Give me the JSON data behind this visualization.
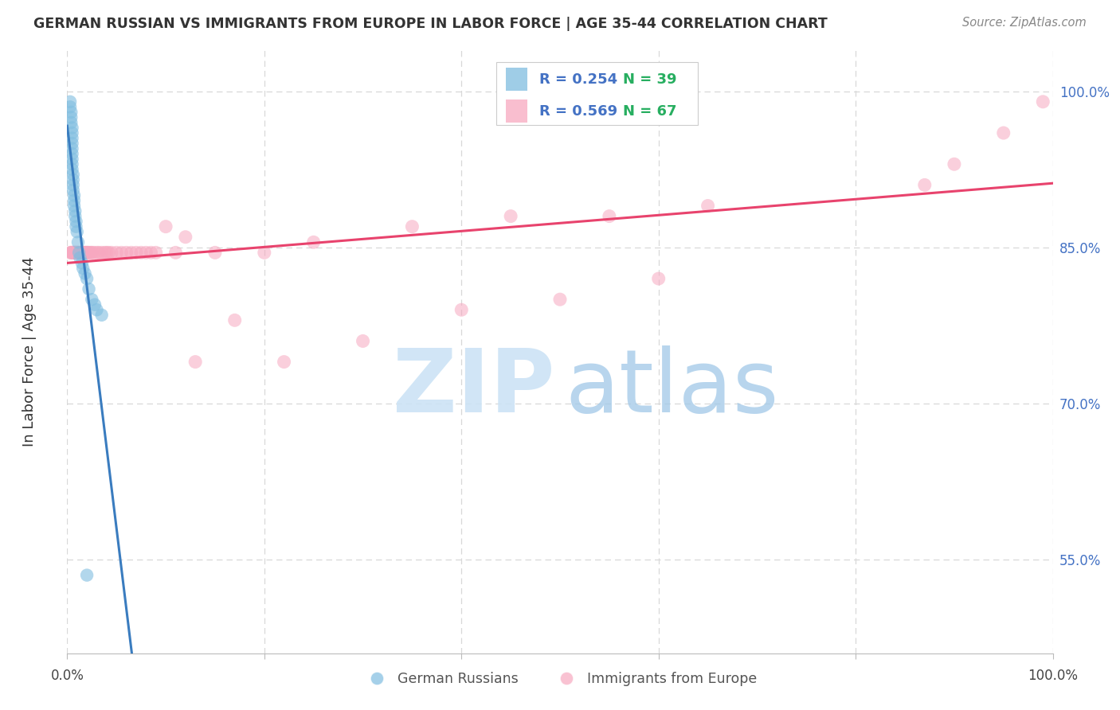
{
  "title": "GERMAN RUSSIAN VS IMMIGRANTS FROM EUROPE IN LABOR FORCE | AGE 35-44 CORRELATION CHART",
  "source": "Source: ZipAtlas.com",
  "ylabel": "In Labor Force | Age 35-44",
  "ylabel_ticks": [
    0.55,
    0.7,
    0.85,
    1.0
  ],
  "ylabel_tick_labels": [
    "55.0%",
    "70.0%",
    "85.0%",
    "100.0%"
  ],
  "xlim": [
    0.0,
    1.0
  ],
  "ylim": [
    0.46,
    1.04
  ],
  "watermark_zip": "ZIP",
  "watermark_atlas": "atlas",
  "legend_blue_r": "R = 0.254",
  "legend_blue_n": "N = 39",
  "legend_pink_r": "R = 0.569",
  "legend_pink_n": "N = 67",
  "legend_label_blue": "German Russians",
  "legend_label_pink": "Immigrants from Europe",
  "blue_scatter_color": "#7fbde0",
  "pink_scatter_color": "#f7a8c0",
  "blue_line_color": "#3a7cbf",
  "pink_line_color": "#e8436d",
  "legend_r_color": "#4472c4",
  "legend_n_color": "#2ecc71",
  "bg_color": "#ffffff",
  "grid_color": "#d8d8d8",
  "title_color": "#333333",
  "source_color": "#888888",
  "ylabel_color": "#333333",
  "xtick_label_color": "#444444",
  "ytick_label_color": "#4472c4",
  "blue_scatter_x": [
    0.003,
    0.003,
    0.004,
    0.004,
    0.004,
    0.005,
    0.005,
    0.005,
    0.005,
    0.005,
    0.005,
    0.005,
    0.005,
    0.005,
    0.006,
    0.006,
    0.006,
    0.006,
    0.007,
    0.007,
    0.007,
    0.008,
    0.008,
    0.009,
    0.009,
    0.01,
    0.011,
    0.012,
    0.013,
    0.015,
    0.016,
    0.018,
    0.02,
    0.022,
    0.025,
    0.028,
    0.03,
    0.035,
    0.02
  ],
  "blue_scatter_y": [
    0.99,
    0.985,
    0.98,
    0.975,
    0.97,
    0.965,
    0.96,
    0.955,
    0.95,
    0.945,
    0.94,
    0.935,
    0.93,
    0.925,
    0.92,
    0.915,
    0.91,
    0.905,
    0.9,
    0.895,
    0.89,
    0.885,
    0.88,
    0.875,
    0.87,
    0.865,
    0.855,
    0.845,
    0.84,
    0.835,
    0.83,
    0.825,
    0.82,
    0.81,
    0.8,
    0.795,
    0.79,
    0.785,
    0.535
  ],
  "pink_scatter_x": [
    0.003,
    0.004,
    0.005,
    0.005,
    0.006,
    0.006,
    0.007,
    0.007,
    0.008,
    0.008,
    0.009,
    0.009,
    0.01,
    0.01,
    0.011,
    0.011,
    0.012,
    0.013,
    0.014,
    0.015,
    0.016,
    0.017,
    0.018,
    0.019,
    0.02,
    0.021,
    0.022,
    0.024,
    0.025,
    0.027,
    0.03,
    0.032,
    0.035,
    0.038,
    0.04,
    0.042,
    0.045,
    0.05,
    0.055,
    0.06,
    0.065,
    0.07,
    0.075,
    0.08,
    0.085,
    0.09,
    0.1,
    0.11,
    0.12,
    0.13,
    0.15,
    0.17,
    0.2,
    0.22,
    0.25,
    0.3,
    0.35,
    0.4,
    0.45,
    0.5,
    0.55,
    0.6,
    0.65,
    0.87,
    0.9,
    0.95,
    0.99
  ],
  "pink_scatter_y": [
    0.845,
    0.845,
    0.845,
    0.845,
    0.845,
    0.845,
    0.845,
    0.845,
    0.845,
    0.845,
    0.845,
    0.845,
    0.845,
    0.845,
    0.845,
    0.845,
    0.845,
    0.845,
    0.845,
    0.845,
    0.845,
    0.845,
    0.845,
    0.845,
    0.845,
    0.845,
    0.845,
    0.845,
    0.845,
    0.845,
    0.845,
    0.845,
    0.845,
    0.845,
    0.845,
    0.845,
    0.845,
    0.845,
    0.845,
    0.845,
    0.845,
    0.845,
    0.845,
    0.845,
    0.845,
    0.845,
    0.87,
    0.845,
    0.86,
    0.74,
    0.845,
    0.78,
    0.845,
    0.74,
    0.855,
    0.76,
    0.87,
    0.79,
    0.88,
    0.8,
    0.88,
    0.82,
    0.89,
    0.91,
    0.93,
    0.96,
    0.99
  ],
  "blue_trend_x": [
    0.0,
    1.0
  ],
  "pink_trend_x": [
    0.0,
    1.0
  ]
}
